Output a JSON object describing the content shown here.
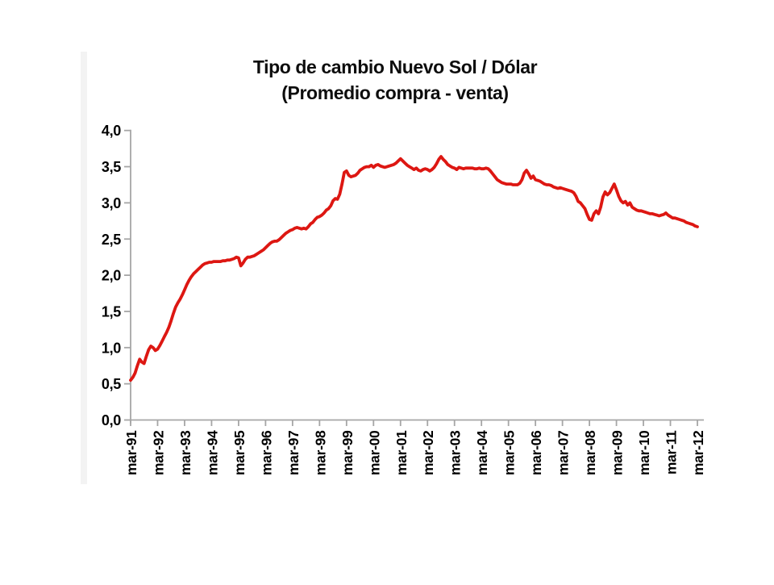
{
  "chart_data": {
    "type": "line",
    "title": "Tipo de cambio Nuevo Sol / Dólar",
    "subtitle": "(Promedio compra - venta)",
    "x_frequency": "monthly",
    "x_range": [
      "mar-91",
      "mar-12"
    ],
    "x_tick_labels": [
      "mar-91",
      "mar-92",
      "mar-93",
      "mar-94",
      "mar-95",
      "mar-96",
      "mar-97",
      "mar-98",
      "mar-99",
      "mar-00",
      "mar-01",
      "mar-02",
      "mar-03",
      "mar-04",
      "mar-05",
      "mar-06",
      "mar-07",
      "mar-08",
      "mar-09",
      "mar-10",
      "mar-11",
      "mar-12"
    ],
    "ylim": [
      0,
      4
    ],
    "y_tick_step": 0.5,
    "y_tick_values": [
      4.0,
      3.5,
      3.0,
      2.5,
      2.0,
      1.5,
      1.0,
      0.5,
      0.0
    ],
    "y_tick_labels": [
      "4,0",
      "3,5",
      "3,0",
      "2,5",
      "2,0",
      "1,5",
      "1,0",
      "0,5",
      "0,0"
    ],
    "grid": false,
    "legend_position": "none",
    "colors": {
      "line": "#dd1712",
      "axis": "#a6a6a6",
      "text": "#000000",
      "background": "#ffffff"
    },
    "series": [
      {
        "name": "Tipo de cambio Nuevo Sol / Dólar (promedio compra - venta)",
        "start": "mar-91",
        "points_per_year": 12,
        "values": [
          0.55,
          0.59,
          0.65,
          0.75,
          0.84,
          0.8,
          0.78,
          0.88,
          0.97,
          1.02,
          1.0,
          0.96,
          0.98,
          1.03,
          1.09,
          1.15,
          1.21,
          1.28,
          1.37,
          1.47,
          1.56,
          1.62,
          1.67,
          1.73,
          1.8,
          1.87,
          1.93,
          1.98,
          2.02,
          2.05,
          2.08,
          2.11,
          2.14,
          2.16,
          2.17,
          2.18,
          2.18,
          2.19,
          2.19,
          2.19,
          2.19,
          2.2,
          2.2,
          2.21,
          2.21,
          2.22,
          2.23,
          2.25,
          2.24,
          2.13,
          2.17,
          2.22,
          2.25,
          2.25,
          2.26,
          2.27,
          2.29,
          2.31,
          2.33,
          2.35,
          2.38,
          2.41,
          2.44,
          2.46,
          2.47,
          2.47,
          2.49,
          2.52,
          2.55,
          2.58,
          2.6,
          2.62,
          2.63,
          2.65,
          2.66,
          2.65,
          2.64,
          2.65,
          2.64,
          2.67,
          2.71,
          2.73,
          2.77,
          2.8,
          2.81,
          2.83,
          2.86,
          2.9,
          2.92,
          2.96,
          3.03,
          3.06,
          3.05,
          3.12,
          3.26,
          3.42,
          3.44,
          3.38,
          3.36,
          3.37,
          3.38,
          3.41,
          3.45,
          3.47,
          3.49,
          3.5,
          3.5,
          3.52,
          3.49,
          3.52,
          3.53,
          3.51,
          3.5,
          3.49,
          3.5,
          3.51,
          3.52,
          3.53,
          3.55,
          3.58,
          3.61,
          3.58,
          3.55,
          3.52,
          3.5,
          3.48,
          3.46,
          3.48,
          3.45,
          3.44,
          3.46,
          3.47,
          3.46,
          3.44,
          3.46,
          3.49,
          3.54,
          3.6,
          3.64,
          3.6,
          3.57,
          3.53,
          3.51,
          3.49,
          3.48,
          3.46,
          3.49,
          3.48,
          3.47,
          3.48,
          3.48,
          3.48,
          3.48,
          3.47,
          3.47,
          3.48,
          3.47,
          3.47,
          3.48,
          3.47,
          3.44,
          3.4,
          3.36,
          3.32,
          3.3,
          3.28,
          3.27,
          3.26,
          3.26,
          3.26,
          3.25,
          3.25,
          3.25,
          3.27,
          3.32,
          3.41,
          3.45,
          3.4,
          3.34,
          3.37,
          3.32,
          3.31,
          3.3,
          3.28,
          3.26,
          3.25,
          3.25,
          3.24,
          3.22,
          3.21,
          3.2,
          3.21,
          3.2,
          3.19,
          3.18,
          3.17,
          3.16,
          3.14,
          3.09,
          3.02,
          3.0,
          2.96,
          2.92,
          2.84,
          2.77,
          2.76,
          2.85,
          2.89,
          2.85,
          2.94,
          3.08,
          3.15,
          3.11,
          3.14,
          3.2,
          3.26,
          3.18,
          3.09,
          3.03,
          3.0,
          3.02,
          2.97,
          3.0,
          2.94,
          2.92,
          2.9,
          2.89,
          2.89,
          2.88,
          2.87,
          2.86,
          2.85,
          2.85,
          2.84,
          2.83,
          2.82,
          2.83,
          2.84,
          2.86,
          2.83,
          2.81,
          2.79,
          2.79,
          2.78,
          2.77,
          2.76,
          2.75,
          2.73,
          2.72,
          2.71,
          2.7,
          2.68,
          2.67
        ]
      }
    ]
  }
}
